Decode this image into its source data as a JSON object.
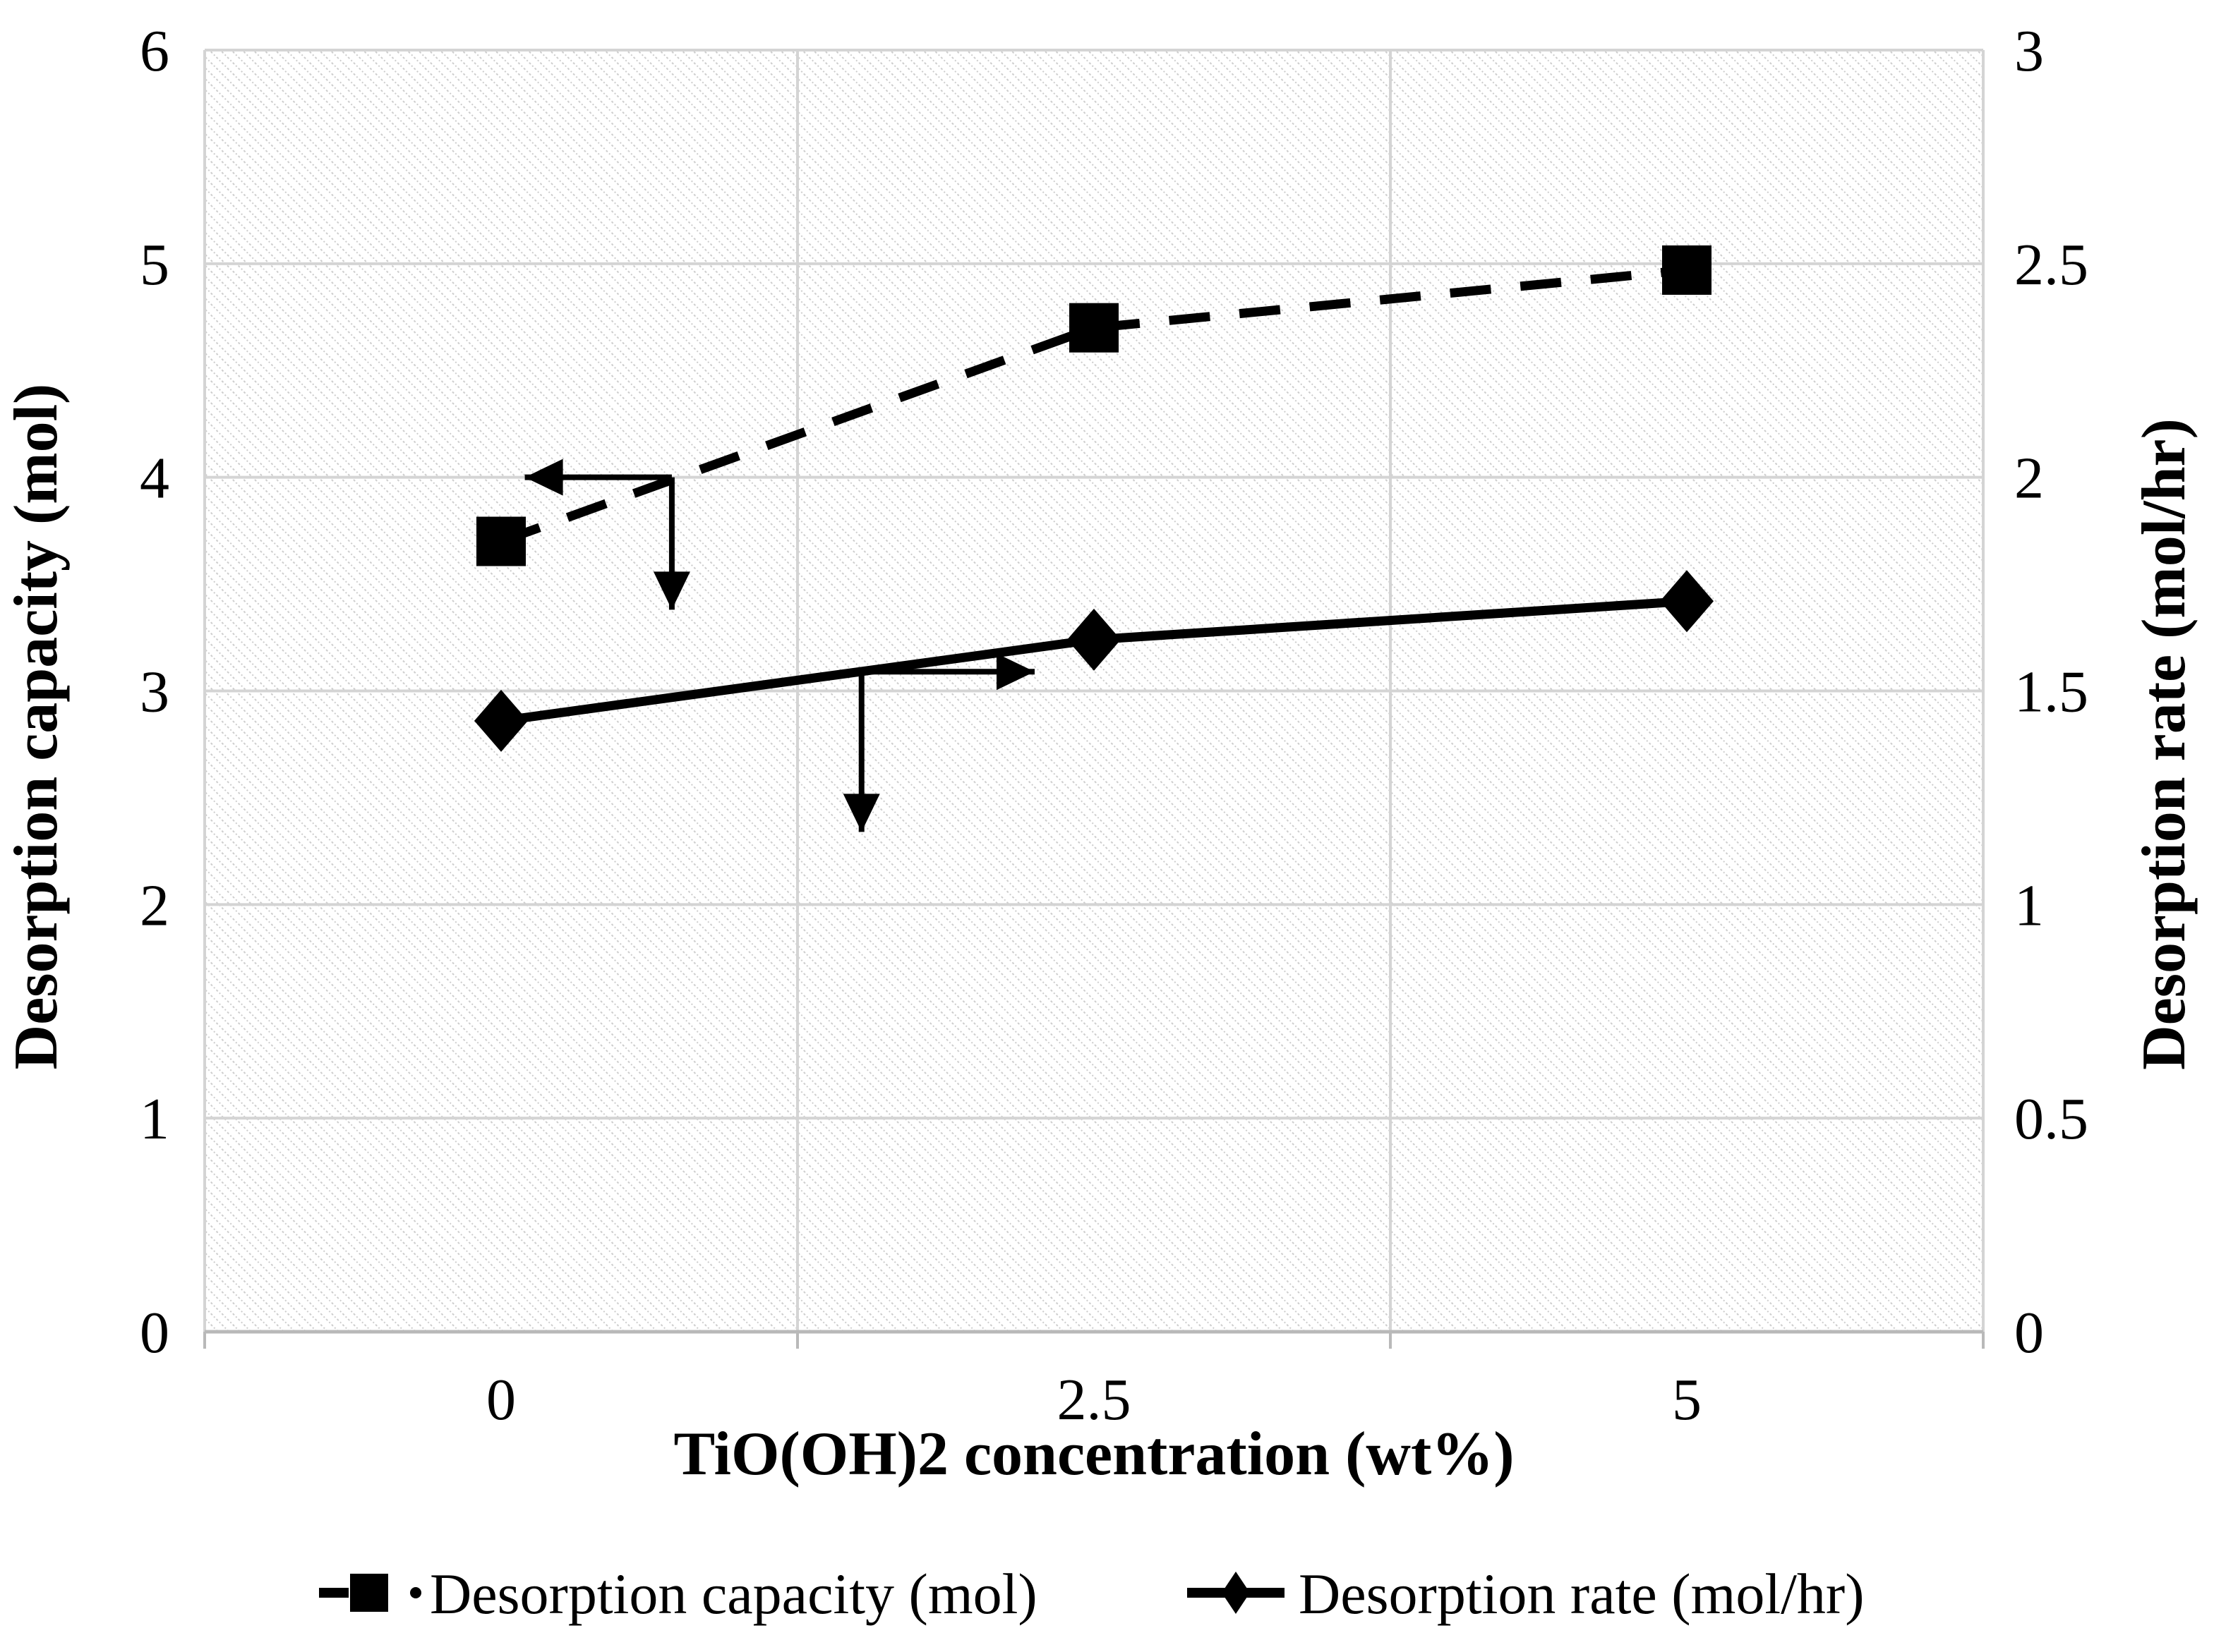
{
  "chart_data": {
    "type": "line",
    "x_label": "TiO(OH)2 concentration (wt%)",
    "x": [
      0,
      2.5,
      5
    ],
    "x_tick_labels": [
      "0",
      "2.5",
      "5"
    ],
    "axes": {
      "left": {
        "title": "Desorption capacity (mol)",
        "min": 0,
        "max": 6,
        "tick_labels": [
          "0",
          "1",
          "2",
          "3",
          "4",
          "5",
          "6"
        ]
      },
      "right": {
        "title": "Desorption rate (mol/hr)",
        "min": 0,
        "max": 3,
        "tick_labels": [
          "0",
          "0.5",
          "1",
          "1.5",
          "2",
          "2.5",
          "3"
        ]
      }
    },
    "series": [
      {
        "name": "Desorption capacity (mol)",
        "axis": "left",
        "marker": "square",
        "line_style": "dashed",
        "color": "#000000",
        "values": [
          3.7,
          4.7,
          4.97
        ]
      },
      {
        "name": "Desorption rate (mol/hr)",
        "axis": "right",
        "marker": "diamond",
        "line_style": "solid",
        "color": "#000000",
        "values": [
          1.43,
          1.62,
          1.71
        ]
      }
    ],
    "annotations": [
      {
        "name": "capacity-reads-left-axis",
        "elbow": {
          "x": 0.72,
          "y": 4.0
        },
        "h_tip": {
          "x": 0.1,
          "y": 4.0
        },
        "v_tip": {
          "x": 0.72,
          "y": 3.38
        }
      },
      {
        "name": "rate-reads-right-axis",
        "elbow": {
          "x": 1.52,
          "y": 3.09
        },
        "h_tip": {
          "x": 2.25,
          "y": 3.09
        },
        "v_tip": {
          "x": 1.52,
          "y": 2.34
        }
      }
    ],
    "legend": {
      "position": "bottom",
      "items": [
        "Desorption capacity (mol)",
        "Desorption rate (mol/hr)"
      ]
    },
    "grid": {
      "horizontal": true,
      "vertical": true
    },
    "plot_background": "hatched"
  },
  "colors": {
    "background": "#ffffff",
    "grid": "#d4d4d4",
    "axis": "#b9b9b9",
    "hatch": "#c8c8c8",
    "series": "#000000"
  }
}
